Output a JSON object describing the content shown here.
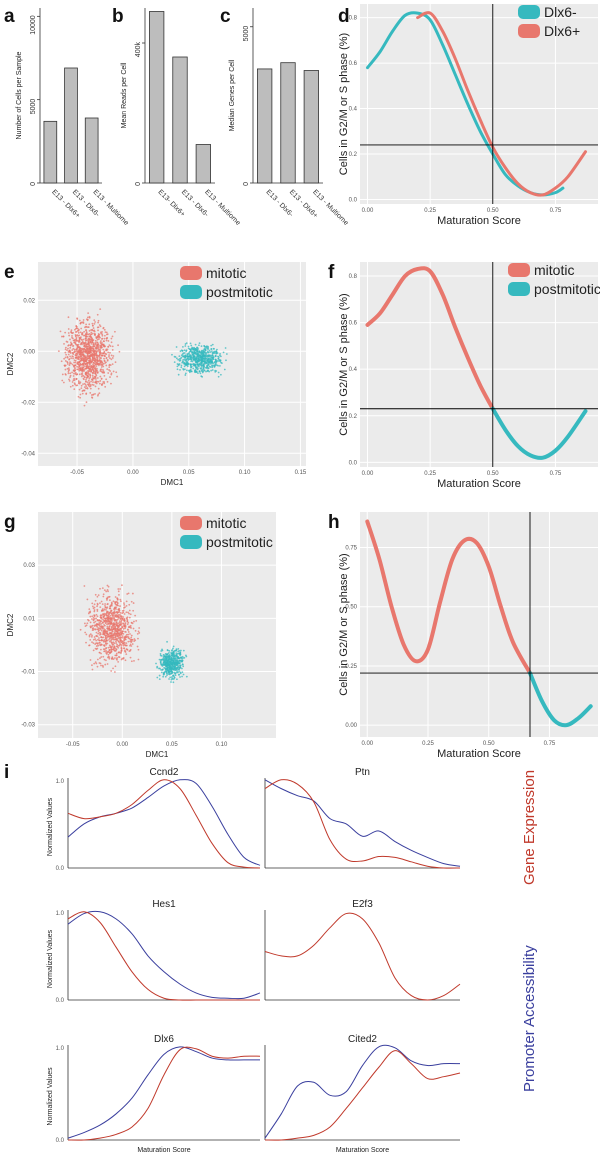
{
  "colors": {
    "red": "#e8776d",
    "teal": "#36b9bf",
    "bar": "#bdbdbd",
    "panel_bg": "#ebebeb",
    "expr": "#c0392b",
    "acc": "#3a3f9e"
  },
  "labels": {
    "a": "a",
    "b": "b",
    "c": "c",
    "d": "d",
    "e": "e",
    "f": "f",
    "g": "g",
    "h": "h",
    "i": "i"
  },
  "side": {
    "expr": "Gene Expression",
    "acc": "Promoter Accessibility"
  },
  "chart_data": [
    {
      "id": "a",
      "type": "bar",
      "categories": [
        "E13 - Dlx6+",
        "E13 - Dlx6-",
        "E13 - Multiome"
      ],
      "values": [
        3700,
        6900,
        3900
      ],
      "ylabel": "Number of Cells per Sample",
      "ylim": [
        0,
        10500
      ],
      "yticks": [
        0,
        5000,
        10000
      ]
    },
    {
      "id": "b",
      "type": "bar",
      "categories": [
        "E13- Dlx6+",
        "E13 - Dlx6-",
        "E13 - Multiome"
      ],
      "values": [
        490000,
        360000,
        110000
      ],
      "ylabel": "Mean Reads per Cell",
      "ylim": [
        0,
        500000
      ],
      "yticks": [
        0,
        400000
      ],
      "ytick_labels": [
        "0",
        "400k"
      ]
    },
    {
      "id": "c",
      "type": "bar",
      "categories": [
        "E13 - Dlx6-",
        "E13 - Dlx6+",
        "E13 - Multiome"
      ],
      "values": [
        3650,
        3850,
        3600
      ],
      "ylabel": "Median Genes per Cell",
      "ylim": [
        0,
        5600
      ],
      "yticks": [
        0,
        5000
      ]
    },
    {
      "id": "d",
      "type": "line",
      "xlabel": "Maturation Score",
      "ylabel": "Cells in G2/M or S phase (%)",
      "xlim": [
        -0.03,
        0.92
      ],
      "ylim": [
        -0.02,
        0.86
      ],
      "xticks": [
        "0.00",
        "0.25",
        "0.50",
        "0.75"
      ],
      "yticks": [
        "0.0",
        "0.2",
        "0.4",
        "0.6",
        "0.8"
      ],
      "vline": 0.5,
      "hline": 0.24,
      "legend_position": "top-right",
      "series": [
        {
          "name": "Dlx6-",
          "color": "#36b9bf",
          "x": [
            0.0,
            0.05,
            0.1,
            0.15,
            0.2,
            0.25,
            0.3,
            0.35,
            0.4,
            0.45,
            0.5,
            0.55,
            0.6,
            0.65,
            0.7,
            0.75,
            0.78
          ],
          "y": [
            0.58,
            0.65,
            0.74,
            0.81,
            0.82,
            0.79,
            0.68,
            0.55,
            0.42,
            0.3,
            0.2,
            0.11,
            0.06,
            0.03,
            0.02,
            0.03,
            0.05
          ]
        },
        {
          "name": "Dlx6+",
          "color": "#e8776d",
          "x": [
            0.2,
            0.25,
            0.3,
            0.35,
            0.4,
            0.45,
            0.5,
            0.55,
            0.6,
            0.65,
            0.7,
            0.75,
            0.8,
            0.87
          ],
          "y": [
            0.8,
            0.82,
            0.74,
            0.62,
            0.48,
            0.35,
            0.23,
            0.14,
            0.07,
            0.03,
            0.02,
            0.05,
            0.1,
            0.21
          ]
        }
      ]
    },
    {
      "id": "e",
      "type": "scatter",
      "xlabel": "DMC1",
      "ylabel": "DMC2",
      "xlim": [
        -0.085,
        0.155
      ],
      "ylim": [
        -0.045,
        0.035
      ],
      "xticks": [
        "-0.05",
        "0.00",
        "0.05",
        "0.10",
        "0.15"
      ],
      "yticks": [
        "-0.04",
        "-0.02",
        "0.00",
        "0.02"
      ],
      "legend_position": "top-right",
      "series": [
        {
          "name": "mitotic",
          "color": "#e8776d",
          "center": [
            -0.04,
            -0.002
          ],
          "spread": [
            0.022,
            0.015
          ]
        },
        {
          "name": "postmitotic",
          "color": "#36b9bf",
          "center": [
            0.06,
            -0.003
          ],
          "spread": [
            0.022,
            0.006
          ]
        }
      ]
    },
    {
      "id": "f",
      "type": "line",
      "xlabel": "Maturation Score",
      "ylabel": "Cells in G2/M or S phase (%)",
      "xlim": [
        -0.03,
        0.92
      ],
      "ylim": [
        -0.02,
        0.86
      ],
      "xticks": [
        "0.00",
        "0.25",
        "0.50",
        "0.75"
      ],
      "yticks": [
        "0.0",
        "0.2",
        "0.4",
        "0.6",
        "0.8"
      ],
      "vline": 0.5,
      "hline": 0.23,
      "legend_position": "top-right",
      "series": [
        {
          "name": "mitotic",
          "color": "#e8776d",
          "x": [
            0.0,
            0.05,
            0.1,
            0.15,
            0.2,
            0.25,
            0.3,
            0.35,
            0.4,
            0.45,
            0.5
          ],
          "y": [
            0.59,
            0.64,
            0.72,
            0.8,
            0.83,
            0.82,
            0.72,
            0.58,
            0.45,
            0.33,
            0.23
          ]
        },
        {
          "name": "postmitotic",
          "color": "#36b9bf",
          "x": [
            0.5,
            0.55,
            0.6,
            0.65,
            0.7,
            0.75,
            0.8,
            0.87
          ],
          "y": [
            0.23,
            0.14,
            0.07,
            0.03,
            0.02,
            0.05,
            0.11,
            0.22
          ]
        }
      ]
    },
    {
      "id": "g",
      "type": "scatter",
      "xlabel": "DMC1",
      "ylabel": "DMC2",
      "xlim": [
        -0.085,
        0.155
      ],
      "ylim": [
        -0.035,
        0.05
      ],
      "xticks": [
        "-0.05",
        "0.00",
        "0.05",
        "0.10"
      ],
      "yticks": [
        "-0.03",
        "-0.01",
        "0.01",
        "0.03"
      ],
      "legend_position": "top-right",
      "series": [
        {
          "name": "mitotic",
          "color": "#e8776d",
          "center": [
            -0.01,
            0.006
          ],
          "spread": [
            0.025,
            0.014
          ]
        },
        {
          "name": "postmitotic",
          "color": "#36b9bf",
          "center": [
            0.05,
            -0.007
          ],
          "spread": [
            0.014,
            0.006
          ]
        }
      ]
    },
    {
      "id": "h",
      "type": "line",
      "xlabel": "Maturation Score",
      "ylabel": "Cells in G2/M or S phase (%)",
      "xlim": [
        -0.03,
        0.95
      ],
      "ylim": [
        -0.05,
        0.9
      ],
      "xticks": [
        "0.00",
        "0.25",
        "0.50",
        "0.75"
      ],
      "yticks": [
        "0.00",
        "0.25",
        "0.50",
        "0.75"
      ],
      "vline": 0.67,
      "hline": 0.22,
      "legend_position": "none",
      "series": [
        {
          "name": "mitotic",
          "color": "#e8776d",
          "x": [
            0.0,
            0.05,
            0.1,
            0.15,
            0.2,
            0.25,
            0.3,
            0.35,
            0.4,
            0.45,
            0.5,
            0.55,
            0.6,
            0.67
          ],
          "y": [
            0.86,
            0.7,
            0.5,
            0.34,
            0.27,
            0.32,
            0.52,
            0.7,
            0.78,
            0.77,
            0.67,
            0.5,
            0.35,
            0.22
          ]
        },
        {
          "name": "postmitotic",
          "color": "#36b9bf",
          "x": [
            0.67,
            0.72,
            0.77,
            0.82,
            0.87,
            0.92
          ],
          "y": [
            0.22,
            0.1,
            0.02,
            0.0,
            0.03,
            0.08
          ]
        }
      ]
    },
    {
      "id": "i",
      "type": "line",
      "xlabel": "Maturation Score",
      "ylabel": "Normalized Values",
      "ylim": [
        0,
        1
      ],
      "yticks": [
        "0.0",
        "1.0"
      ],
      "legend": "none",
      "panels": [
        {
          "title": "Ccnd2",
          "expr": [
            0.62,
            0.56,
            0.58,
            0.62,
            0.72,
            0.88,
            1.0,
            0.9,
            0.6,
            0.28,
            0.06,
            0.01,
            0.0
          ],
          "acc": [
            0.35,
            0.5,
            0.58,
            0.62,
            0.68,
            0.8,
            0.93,
            1.0,
            0.96,
            0.7,
            0.38,
            0.12,
            0.03
          ]
        },
        {
          "title": "Ptn",
          "expr": [
            0.9,
            1.0,
            0.95,
            0.75,
            0.32,
            0.1,
            0.08,
            0.13,
            0.12,
            0.07,
            0.02,
            0.0,
            0.0
          ],
          "acc": [
            1.0,
            0.9,
            0.82,
            0.76,
            0.56,
            0.5,
            0.36,
            0.42,
            0.3,
            0.2,
            0.12,
            0.05,
            0.02
          ]
        },
        {
          "title": "Hes1",
          "expr": [
            0.92,
            1.0,
            0.88,
            0.6,
            0.32,
            0.12,
            0.02,
            0.0,
            0.0,
            0.0,
            0.0,
            0.0,
            0.0
          ],
          "acc": [
            0.86,
            0.98,
            1.0,
            0.92,
            0.75,
            0.5,
            0.32,
            0.18,
            0.08,
            0.03,
            0.02,
            0.02,
            0.08
          ]
        },
        {
          "title": "E2f3",
          "expr": [
            0.55,
            0.5,
            0.5,
            0.62,
            0.82,
            0.98,
            0.92,
            0.65,
            0.25,
            0.05,
            0.0,
            0.05,
            0.18
          ]
        },
        {
          "title": "Dlx6",
          "expr": [
            0.0,
            0.0,
            0.02,
            0.06,
            0.14,
            0.34,
            0.7,
            0.97,
            0.98,
            0.9,
            0.88,
            0.9,
            0.9
          ],
          "acc": [
            0.02,
            0.08,
            0.16,
            0.28,
            0.45,
            0.7,
            0.92,
            1.0,
            0.95,
            0.88,
            0.86,
            0.86,
            0.86
          ]
        },
        {
          "title": "Cited2",
          "expr": [
            0.0,
            0.0,
            0.02,
            0.05,
            0.14,
            0.34,
            0.56,
            0.78,
            0.96,
            0.82,
            0.66,
            0.68,
            0.72
          ],
          "acc": [
            0.02,
            0.28,
            0.58,
            0.62,
            0.48,
            0.52,
            0.8,
            1.0,
            0.99,
            0.85,
            0.8,
            0.82,
            0.82
          ]
        }
      ]
    }
  ]
}
